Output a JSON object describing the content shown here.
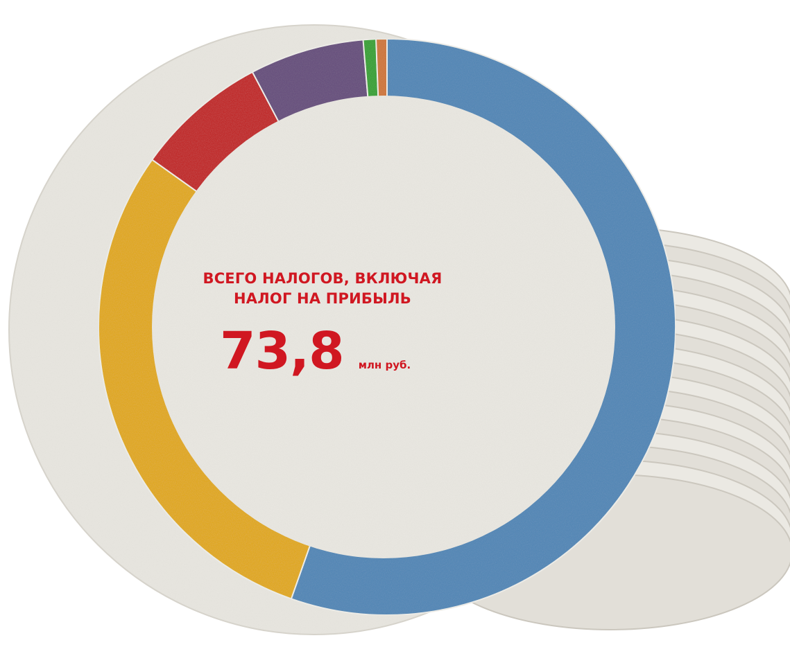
{
  "center": {
    "title_line1": "ВСЕГО НАЛОГОВ, ВКЛЮЧАЯ",
    "title_line2": "НАЛОГ НА ПРИБЫЛЬ",
    "total_value": "73,8",
    "total_unit": "млн руб."
  },
  "colors": {
    "accent_red_text": "#d01721",
    "coaster": "#e8e6e0",
    "coaster_shade": "#d3d0c8"
  },
  "chart_data": {
    "type": "pie",
    "variant": "donut",
    "title": "",
    "total": "73,8",
    "total_unit": "млн руб.",
    "labels_visible": false,
    "series": [
      {
        "value": 54.5,
        "color": "#4f86b6"
      },
      {
        "value": 29.0,
        "color": "#e1a800"
      },
      {
        "value": 7.3,
        "color": "#c11d1c"
      },
      {
        "value": 6.3,
        "color": "#654b7c"
      },
      {
        "value": 0.7,
        "color": "#33a12f"
      },
      {
        "value": 0.6,
        "color": "#cf7635"
      }
    ]
  }
}
